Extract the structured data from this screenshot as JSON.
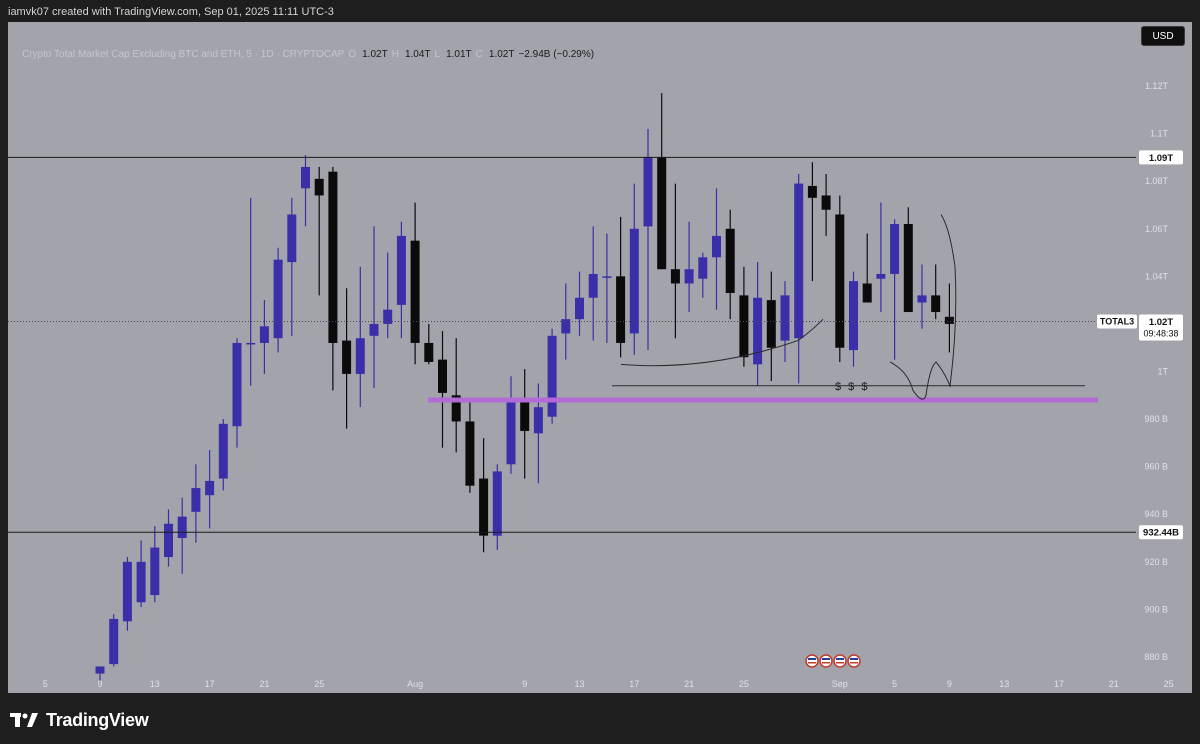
{
  "header": {
    "text": "iamvk07 created with TradingView.com, Sep 01, 2025 11:11 UTC-3"
  },
  "toolbar": {
    "currency": "USD"
  },
  "legend": {
    "title": "Crypto Total Market Cap Excluding BTC and ETH, 5 · 1D · CRYPTOCAP",
    "o": "1.02T",
    "h": "1.04T",
    "l": "1.01T",
    "c": "1.02T",
    "change": "−2.94B (−0.29%)"
  },
  "footer": {
    "brand": "TradingView"
  },
  "colors": {
    "background": "#a3a4ab",
    "bull": "#3a2fa8",
    "bear": "#0b0b0b",
    "level_line": "#1b1b1b",
    "highlight_zone": "#b36ad6",
    "frame": "#1e1e1e"
  },
  "chart_data": {
    "type": "candlestick",
    "symbol": "TOTAL3",
    "interval": "1D",
    "ylim": [
      872,
      1128
    ],
    "y_unit": "B",
    "y_ticks": [
      {
        "v": 880,
        "label": "880 B"
      },
      {
        "v": 900,
        "label": "900 B"
      },
      {
        "v": 920,
        "label": "920 B"
      },
      {
        "v": 940,
        "label": "940 B"
      },
      {
        "v": 960,
        "label": "960 B"
      },
      {
        "v": 980,
        "label": "980 B"
      },
      {
        "v": 1000,
        "label": "1T"
      },
      {
        "v": 1040,
        "label": "1.04T"
      },
      {
        "v": 1060,
        "label": "1.06T"
      },
      {
        "v": 1080,
        "label": "1.08T"
      },
      {
        "v": 1100,
        "label": "1.1T"
      },
      {
        "v": 1120,
        "label": "1.12T"
      }
    ],
    "x_ticks": [
      {
        "i": -4,
        "label": "5"
      },
      {
        "i": 0,
        "label": "9"
      },
      {
        "i": 4,
        "label": "13"
      },
      {
        "i": 8,
        "label": "17"
      },
      {
        "i": 12,
        "label": "21"
      },
      {
        "i": 16,
        "label": "25"
      },
      {
        "i": 23,
        "label": "Aug"
      },
      {
        "i": 31,
        "label": "9"
      },
      {
        "i": 35,
        "label": "13"
      },
      {
        "i": 39,
        "label": "17"
      },
      {
        "i": 43,
        "label": "21"
      },
      {
        "i": 47,
        "label": "25"
      },
      {
        "i": 54,
        "label": "Sep"
      },
      {
        "i": 58,
        "label": "5"
      },
      {
        "i": 62,
        "label": "9"
      },
      {
        "i": 66,
        "label": "13"
      },
      {
        "i": 70,
        "label": "17"
      },
      {
        "i": 74,
        "label": "21"
      },
      {
        "i": 78,
        "label": "25"
      }
    ],
    "candles": [
      {
        "o": 873,
        "h": 876,
        "l": 870,
        "c": 876
      },
      {
        "o": 877,
        "h": 898,
        "l": 876,
        "c": 896
      },
      {
        "o": 895,
        "h": 922,
        "l": 891,
        "c": 920
      },
      {
        "o": 903,
        "h": 929,
        "l": 901,
        "c": 920
      },
      {
        "o": 906,
        "h": 935,
        "l": 903,
        "c": 926
      },
      {
        "o": 922,
        "h": 942,
        "l": 918,
        "c": 936
      },
      {
        "o": 930,
        "h": 947,
        "l": 915,
        "c": 939
      },
      {
        "o": 941,
        "h": 961,
        "l": 928,
        "c": 951
      },
      {
        "o": 948,
        "h": 967,
        "l": 934,
        "c": 954
      },
      {
        "o": 955,
        "h": 980,
        "l": 950,
        "c": 978
      },
      {
        "o": 977,
        "h": 1014,
        "l": 968,
        "c": 1012
      },
      {
        "o": 1012,
        "h": 1073,
        "l": 994,
        "c": 1012
      },
      {
        "o": 1012,
        "h": 1030,
        "l": 999,
        "c": 1019
      },
      {
        "o": 1014,
        "h": 1052,
        "l": 1008,
        "c": 1047
      },
      {
        "o": 1046,
        "h": 1073,
        "l": 1015,
        "c": 1066
      },
      {
        "o": 1077,
        "h": 1091,
        "l": 1061,
        "c": 1086
      },
      {
        "o": 1081,
        "h": 1086,
        "l": 1032,
        "c": 1074
      },
      {
        "o": 1084,
        "h": 1086,
        "l": 992,
        "c": 1012
      },
      {
        "o": 1013,
        "h": 1035,
        "l": 976,
        "c": 999
      },
      {
        "o": 999,
        "h": 1044,
        "l": 985,
        "c": 1014
      },
      {
        "o": 1015,
        "h": 1061,
        "l": 993,
        "c": 1020
      },
      {
        "o": 1020,
        "h": 1050,
        "l": 1014,
        "c": 1026
      },
      {
        "o": 1028,
        "h": 1063,
        "l": 1014,
        "c": 1057
      },
      {
        "o": 1055,
        "h": 1071,
        "l": 1003,
        "c": 1012
      },
      {
        "o": 1012,
        "h": 1020,
        "l": 1003,
        "c": 1004
      },
      {
        "o": 1005,
        "h": 1017,
        "l": 968,
        "c": 991
      },
      {
        "o": 990,
        "h": 1014,
        "l": 966,
        "c": 979
      },
      {
        "o": 979,
        "h": 989,
        "l": 949,
        "c": 952
      },
      {
        "o": 955,
        "h": 972,
        "l": 924,
        "c": 931
      },
      {
        "o": 931,
        "h": 961,
        "l": 925,
        "c": 958
      },
      {
        "o": 961,
        "h": 998,
        "l": 957,
        "c": 989
      },
      {
        "o": 989,
        "h": 1001,
        "l": 955,
        "c": 975
      },
      {
        "o": 974,
        "h": 995,
        "l": 953,
        "c": 985
      },
      {
        "o": 981,
        "h": 1018,
        "l": 978,
        "c": 1015
      },
      {
        "o": 1016,
        "h": 1037,
        "l": 1005,
        "c": 1022
      },
      {
        "o": 1022,
        "h": 1042,
        "l": 1015,
        "c": 1031
      },
      {
        "o": 1031,
        "h": 1061,
        "l": 1013,
        "c": 1041
      },
      {
        "o": 1040,
        "h": 1058,
        "l": 1012,
        "c": 1040
      },
      {
        "o": 1040,
        "h": 1065,
        "l": 1006,
        "c": 1012
      },
      {
        "o": 1016,
        "h": 1079,
        "l": 1007,
        "c": 1060
      },
      {
        "o": 1061,
        "h": 1102,
        "l": 1009,
        "c": 1090
      },
      {
        "o": 1090,
        "h": 1117,
        "l": 1043,
        "c": 1043
      },
      {
        "o": 1043,
        "h": 1079,
        "l": 1014,
        "c": 1037
      },
      {
        "o": 1037,
        "h": 1063,
        "l": 1025,
        "c": 1043
      },
      {
        "o": 1039,
        "h": 1050,
        "l": 1031,
        "c": 1048
      },
      {
        "o": 1048,
        "h": 1077,
        "l": 1026,
        "c": 1057
      },
      {
        "o": 1060,
        "h": 1068,
        "l": 1022,
        "c": 1033
      },
      {
        "o": 1032,
        "h": 1044,
        "l": 1002,
        "c": 1006
      },
      {
        "o": 1003,
        "h": 1046,
        "l": 994,
        "c": 1031
      },
      {
        "o": 1030,
        "h": 1042,
        "l": 996,
        "c": 1010
      },
      {
        "o": 1013,
        "h": 1038,
        "l": 1004,
        "c": 1032
      },
      {
        "o": 1014,
        "h": 1083,
        "l": 995,
        "c": 1079
      },
      {
        "o": 1078,
        "h": 1088,
        "l": 1038,
        "c": 1073
      },
      {
        "o": 1074,
        "h": 1083,
        "l": 1057,
        "c": 1068
      },
      {
        "o": 1066,
        "h": 1074,
        "l": 1004,
        "c": 1010
      },
      {
        "o": 1009,
        "h": 1042,
        "l": 1002,
        "c": 1038
      },
      {
        "o": 1037,
        "h": 1058,
        "l": 1031,
        "c": 1029
      },
      {
        "o": 1039,
        "h": 1071,
        "l": 1025,
        "c": 1041
      },
      {
        "o": 1041,
        "h": 1064,
        "l": 1005,
        "c": 1062
      },
      {
        "o": 1062,
        "h": 1069,
        "l": 1027,
        "c": 1025
      },
      {
        "o": 1029,
        "h": 1045,
        "l": 1018,
        "c": 1032
      },
      {
        "o": 1032,
        "h": 1045,
        "l": 1022,
        "c": 1025
      },
      {
        "o": 1023,
        "h": 1037,
        "l": 1008,
        "c": 1020
      }
    ],
    "levels": [
      {
        "v": 1090,
        "label": "1.09T"
      },
      {
        "v": 932.44,
        "label": "932.44B"
      }
    ],
    "last_price": {
      "v": 1021,
      "symbol": "TOTAL3",
      "value": "1.02T",
      "countdown": "09:48:38"
    },
    "zone_line": {
      "v": 988
    },
    "annotation": {
      "text": "$ $ $",
      "v": 994
    }
  }
}
